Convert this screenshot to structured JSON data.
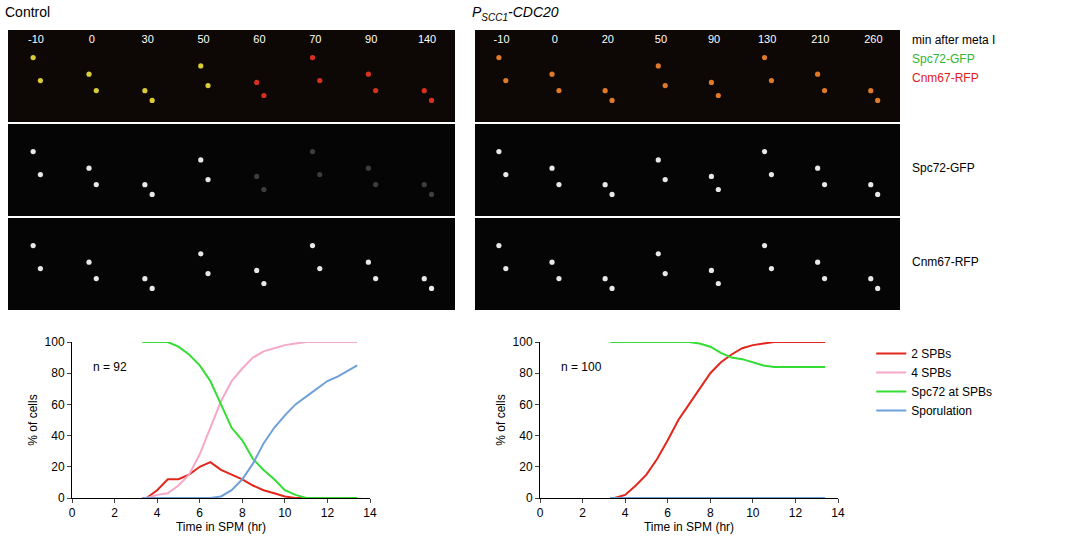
{
  "panels": [
    {
      "title_parts": [
        {
          "text": "Control"
        }
      ],
      "times": [
        "-10",
        "0",
        "30",
        "50",
        "60",
        "70",
        "90",
        "140"
      ]
    },
    {
      "title_parts": [
        {
          "text": "P"
        },
        {
          "text": "SCC1",
          "sub": true
        },
        {
          "text": "-CDC20"
        }
      ],
      "times": [
        "-10",
        "0",
        "20",
        "50",
        "90",
        "130",
        "210",
        "260"
      ]
    }
  ],
  "channel_labels": [
    {
      "text": "min after meta I",
      "color": "#000000"
    },
    {
      "text": "Spc72-GFP",
      "color": "#2fb52f"
    },
    {
      "text": "Cnm67-RFP",
      "color": "#e02020"
    },
    {
      "text": "Spc72-GFP",
      "color": "#000000"
    },
    {
      "text": "Cnm67-RFP",
      "color": "#000000"
    }
  ],
  "chart_data": [
    {
      "type": "line",
      "annotations": [
        "n = 92"
      ],
      "x_label": "Time in SPM (hr)",
      "y_label": "% of cells",
      "x": [
        3.3,
        3.5,
        4,
        4.5,
        5,
        5.5,
        6,
        6.5,
        7,
        7.5,
        8,
        8.5,
        9,
        9.5,
        10,
        10.5,
        11,
        11.5,
        12,
        12.5,
        13,
        13.4
      ],
      "xlim": [
        0,
        14
      ],
      "xticks": [
        0,
        2,
        4,
        6,
        8,
        10,
        12,
        14
      ],
      "ylim": [
        0,
        100
      ],
      "yticks": [
        0,
        20,
        40,
        60,
        80,
        100
      ],
      "grid": false,
      "series": [
        {
          "name": "2 SPBs",
          "color": "#e3261c",
          "values": [
            0,
            0,
            5,
            12,
            12,
            15,
            20,
            23,
            18,
            15,
            12,
            8,
            5,
            3,
            1,
            0,
            0,
            0,
            0,
            0,
            0,
            0
          ]
        },
        {
          "name": "4 SPBs",
          "color": "#f5a8c8",
          "values": [
            0,
            0,
            2,
            3,
            8,
            15,
            28,
            45,
            62,
            75,
            83,
            90,
            94,
            96,
            98,
            99,
            100,
            100,
            100,
            100,
            100,
            100
          ]
        },
        {
          "name": "Spc72 at SPBs",
          "color": "#33dd33",
          "values": [
            100,
            100,
            100,
            100,
            97,
            92,
            85,
            75,
            60,
            45,
            37,
            25,
            18,
            12,
            5,
            2,
            0,
            0,
            0,
            0,
            0,
            0
          ]
        },
        {
          "name": "Sporulation",
          "color": "#6fa0d8",
          "values": [
            0,
            0,
            0,
            0,
            0,
            0,
            0,
            0,
            1,
            5,
            12,
            22,
            35,
            45,
            53,
            60,
            65,
            70,
            75,
            78,
            82,
            85
          ]
        }
      ]
    },
    {
      "type": "line",
      "annotations": [
        "n = 100"
      ],
      "x_label": "Time in SPM (hr)",
      "y_label": "% of cells",
      "legend": "right",
      "x": [
        3.3,
        3.5,
        4,
        4.5,
        5,
        5.5,
        6,
        6.5,
        7,
        7.5,
        8,
        8.5,
        9,
        9.5,
        10,
        10.5,
        11,
        11.5,
        12,
        12.5,
        13,
        13.4
      ],
      "xlim": [
        0,
        14
      ],
      "xticks": [
        0,
        2,
        4,
        6,
        8,
        10,
        12,
        14
      ],
      "ylim": [
        0,
        100
      ],
      "yticks": [
        0,
        20,
        40,
        60,
        80,
        100
      ],
      "grid": false,
      "series": [
        {
          "name": "2 SPBs",
          "color": "#e3261c",
          "values": [
            0,
            0,
            2,
            8,
            15,
            25,
            37,
            50,
            60,
            70,
            80,
            87,
            92,
            96,
            98,
            99,
            100,
            100,
            100,
            100,
            100,
            100
          ]
        },
        {
          "name": "4 SPBs",
          "color": "#f5a8c8",
          "values": [
            0,
            0,
            0,
            0,
            0,
            0,
            0,
            0,
            0,
            0,
            0,
            0,
            0,
            0,
            0,
            0,
            0,
            0,
            0,
            0,
            0,
            0
          ]
        },
        {
          "name": "Spc72 at SPBs",
          "color": "#33dd33",
          "values": [
            100,
            100,
            100,
            100,
            100,
            100,
            100,
            100,
            100,
            99,
            97,
            93,
            90,
            89,
            87,
            85,
            84,
            84,
            84,
            84,
            84,
            84
          ]
        },
        {
          "name": "Sporulation",
          "color": "#6fa0d8",
          "values": [
            0,
            0,
            0,
            0,
            0,
            0,
            0,
            0,
            0,
            0,
            0,
            0,
            0,
            0,
            0,
            0,
            0,
            0,
            0,
            0,
            0,
            0
          ]
        }
      ]
    }
  ]
}
